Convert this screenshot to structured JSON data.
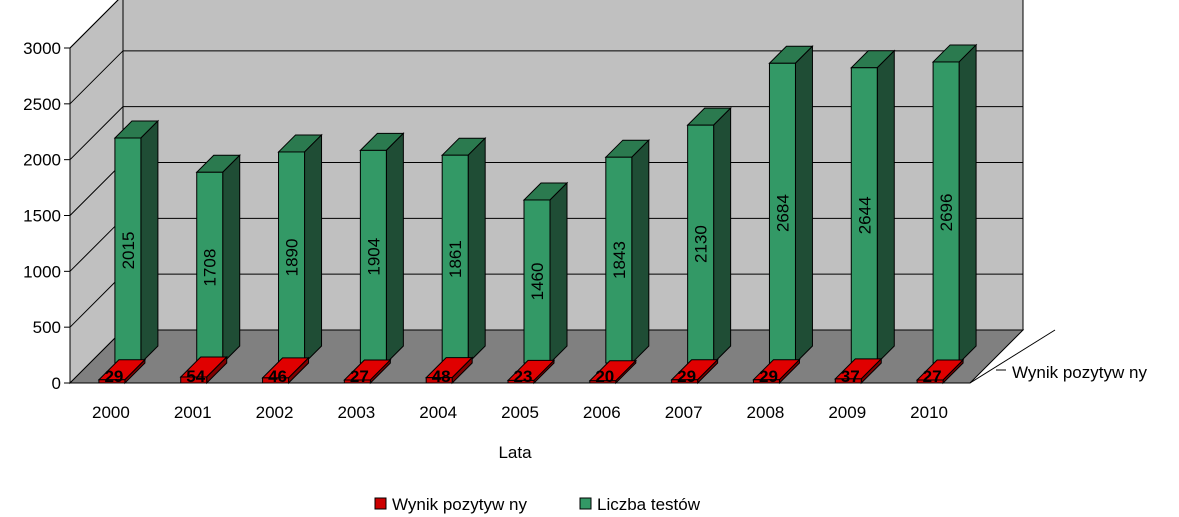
{
  "chart_data": {
    "type": "bar",
    "title": "",
    "xlabel": "Lata",
    "ylabel": "",
    "ylim": [
      0,
      3000
    ],
    "yticks": [
      0,
      500,
      1000,
      1500,
      2000,
      2500,
      3000
    ],
    "categories": [
      "2000",
      "2001",
      "2002",
      "2003",
      "2004",
      "2005",
      "2006",
      "2007",
      "2008",
      "2009",
      "2010"
    ],
    "depth_axis_label": "Wynik pozytyw ny",
    "grid": true,
    "legend_position": "bottom",
    "series": [
      {
        "name": "Wynik pozytyw ny",
        "color": "#cc0000",
        "values": [
          29,
          54,
          46,
          27,
          48,
          23,
          20,
          29,
          29,
          37,
          27
        ]
      },
      {
        "name": "Liczba testów",
        "color": "#339966",
        "values": [
          2015,
          1708,
          1890,
          1904,
          1861,
          1460,
          1843,
          2130,
          2684,
          2644,
          2696
        ]
      }
    ],
    "colors": {
      "wall": "#c0c0c0",
      "floor": "#808080",
      "green_side": "#1f4d35",
      "green_top": "#2b7a4f",
      "red_side": "#800000",
      "red_top": "#e00000"
    }
  }
}
